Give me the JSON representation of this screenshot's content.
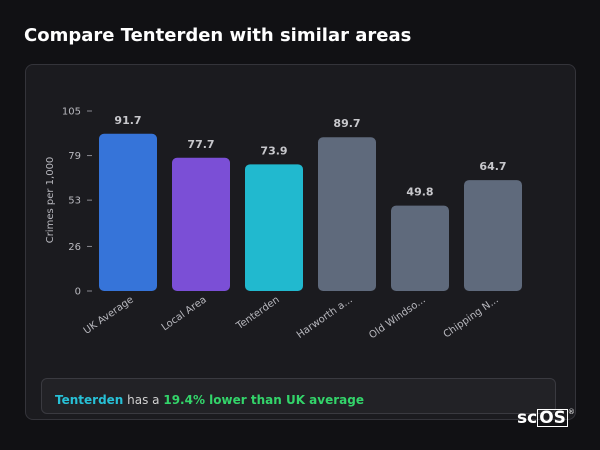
{
  "header": {
    "title": "Compare Tenterden with similar areas"
  },
  "chart_data": {
    "type": "bar",
    "ylabel": "Crimes per 1,000",
    "ylim": [
      0,
      105
    ],
    "yticks": [
      0,
      26,
      53,
      79,
      105
    ],
    "categories": [
      "UK Average",
      "Local Area",
      "Tenterden",
      "Harworth a...",
      "Old Windso...",
      "Chipping N..."
    ],
    "values": [
      91.7,
      77.7,
      73.9,
      89.7,
      49.8,
      64.7
    ],
    "value_labels": [
      "91.7",
      "77.7",
      "73.9",
      "89.7",
      "49.8",
      "64.7"
    ],
    "colors": [
      "#3674d9",
      "#7b4fd6",
      "#21b9cf",
      "#5f6a7c",
      "#5f6a7c",
      "#5f6a7c"
    ],
    "grid": false,
    "legend": "none"
  },
  "summary": {
    "area": "Tenterden",
    "middle": " has a ",
    "difference": "19.4% lower than UK average"
  },
  "brand": {
    "logo_left": "sc",
    "logo_right": "OS",
    "reg": "®"
  },
  "colors": {
    "background": "#111114",
    "card": "#1b1b1f",
    "accent_area": "#27c0d6",
    "accent_positive": "#33d46a"
  }
}
